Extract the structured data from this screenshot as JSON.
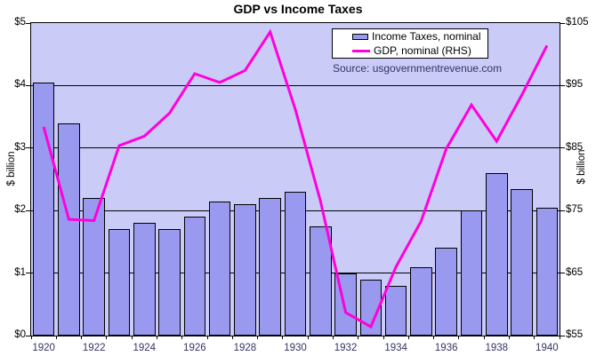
{
  "title": "GDP vs Income Taxes",
  "source_note": "Source: usgovernmentrevenue.com",
  "legend": {
    "bar_label": "Income Taxes, nominal",
    "line_label": "GDP, nominal (RHS)"
  },
  "colors": {
    "plot_bg": "#cbcbf8",
    "bar_fill": "#9999f0",
    "bar_border": "#000000",
    "line": "#ff00dd",
    "gridline": "#000000",
    "axis_value_label": "#000000",
    "year_label": "#333366",
    "source_text": "#333366"
  },
  "chart_data": {
    "type": "bar",
    "subtype": "combo-bar-line-dual-axis",
    "title": "GDP vs Income Taxes",
    "categories": [
      1920,
      1921,
      1922,
      1923,
      1924,
      1925,
      1926,
      1927,
      1928,
      1929,
      1930,
      1931,
      1932,
      1933,
      1934,
      1935,
      1936,
      1937,
      1938,
      1939,
      1940
    ],
    "x_tick_labels": [
      "1920",
      "1922",
      "1924",
      "1926",
      "1928",
      "1930",
      "1932",
      "1934",
      "1936",
      "1938",
      "1940"
    ],
    "series": [
      {
        "name": "Income Taxes, nominal",
        "type": "bar",
        "axis": "left",
        "values": [
          4.05,
          3.4,
          2.2,
          1.7,
          1.8,
          1.7,
          1.9,
          2.15,
          2.1,
          2.2,
          2.3,
          1.75,
          1.0,
          0.9,
          0.8,
          1.1,
          1.4,
          2.0,
          2.6,
          2.35,
          2.05
        ]
      },
      {
        "name": "GDP, nominal (RHS)",
        "type": "line",
        "axis": "right",
        "values": [
          88.4,
          73.6,
          73.4,
          85.4,
          86.9,
          90.6,
          96.9,
          95.5,
          97.4,
          103.6,
          91.2,
          76.5,
          58.7,
          56.4,
          66.0,
          73.3,
          84.9,
          91.9,
          86.1,
          93.5,
          101.4
        ]
      }
    ],
    "left_axis": {
      "label": "$ billion",
      "min": 0,
      "max": 5,
      "step": 1,
      "tick_labels": [
        "$0",
        "$1",
        "$2",
        "$3",
        "$4",
        "$5"
      ]
    },
    "right_axis": {
      "label": "$ billion",
      "min": 55,
      "max": 105,
      "step": 10,
      "tick_labels": [
        "$55",
        "$65",
        "$75",
        "$85",
        "$95",
        "$105"
      ]
    },
    "grid": "horizontal",
    "legend_position": "inside-top-center"
  }
}
